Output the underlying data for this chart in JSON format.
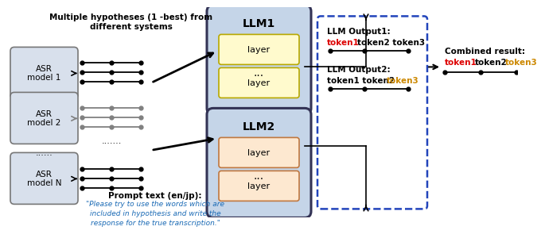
{
  "bg_color": "#ffffff",
  "heading": "Multiple hypotheses (1 -best) from\ndifferent systems",
  "asr_labels": [
    "ASR\nmodel 1",
    "ASR\nmodel 2",
    "ASR\nmodel N"
  ],
  "asr_fc": "#d8e0ec",
  "asr_ec": "#777777",
  "asr_dots_label": "......",
  "llm1_label": "LLM1",
  "llm2_label": "LLM2",
  "llm_fc": "#c5d5e8",
  "llm_ec": "#333355",
  "layer1_fc": "#fffacd",
  "layer1_ec": "#b8a800",
  "layer2_fc": "#fde8d0",
  "layer2_ec": "#c07840",
  "layer_label": "layer",
  "dots_label": "...",
  "out1_label": "LLM Output1:",
  "out1_t1": "token1",
  "out1_t2": "token2 token3",
  "out1_t1_color": "#dd0000",
  "out1_t2_color": "#000000",
  "out2_label": "LLM Output2:",
  "out2_t1": "token1 token2",
  "out2_t3": "token3",
  "out2_t1_color": "#000000",
  "out2_t3_color": "#cc8800",
  "dash_ec": "#2244bb",
  "combined_label": "Combined result:",
  "comb_t1": "token1",
  "comb_t2": "token2",
  "comb_t3": "token3",
  "comb_t1_color": "#dd0000",
  "comb_t2_color": "#000000",
  "comb_t3_color": "#cc8800",
  "prompt_heading": "Prompt text (en/jp):",
  "prompt_text": "\"Please try to use the words which are\nincluded in hypothesis and write the\nresponse for the true transcription.\"",
  "prompt_color": "#1a6ab5"
}
